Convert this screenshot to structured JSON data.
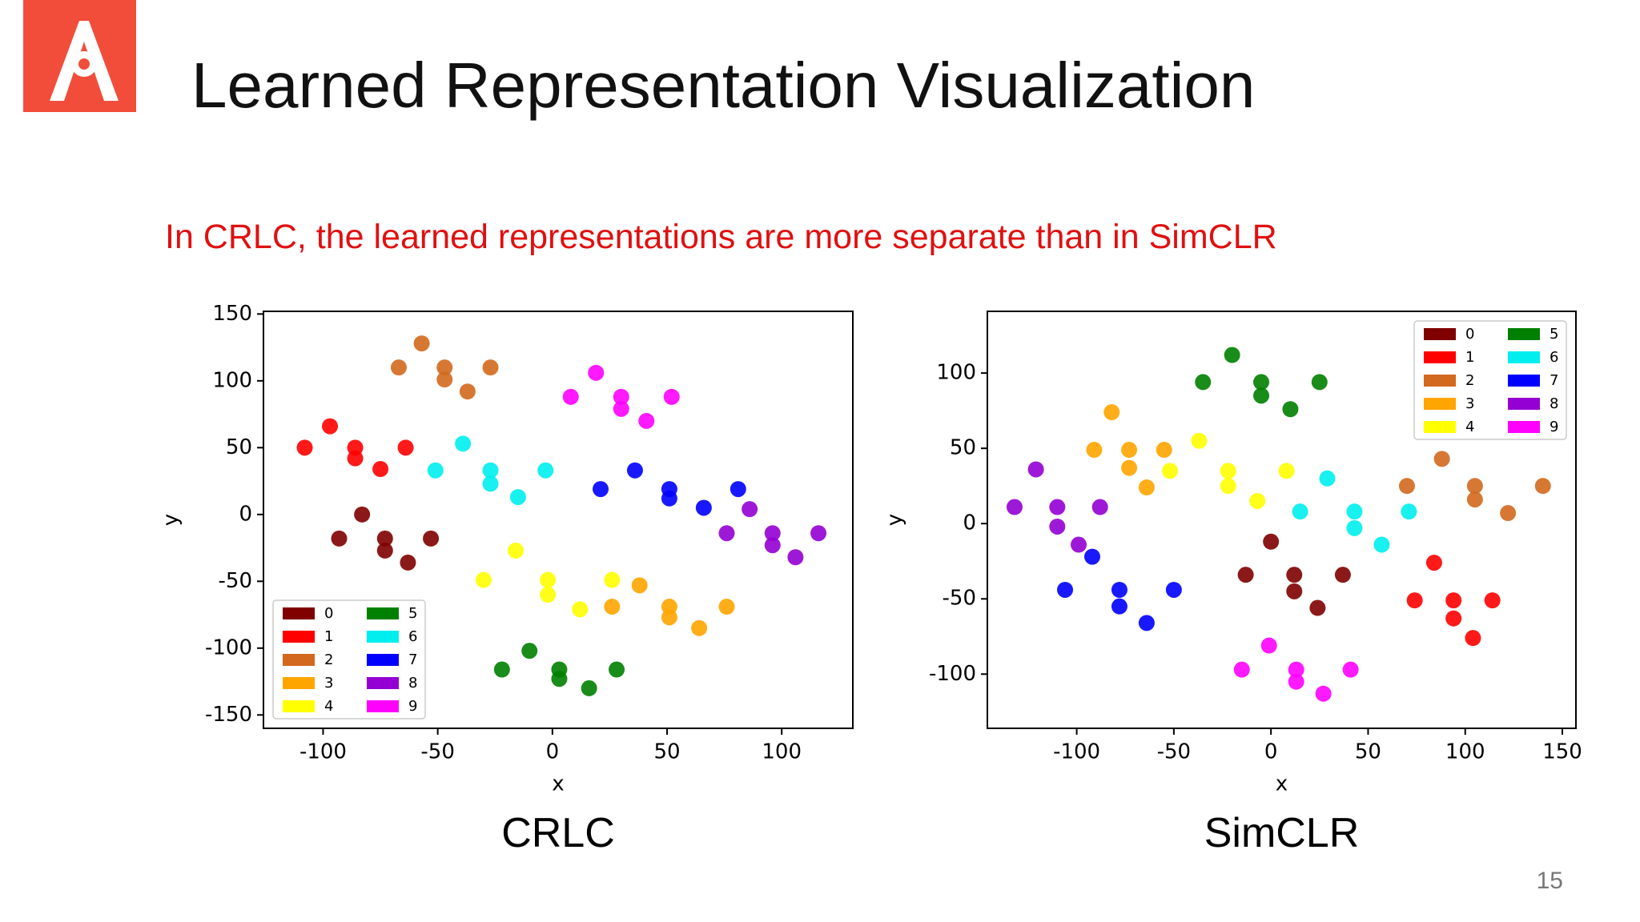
{
  "title": "Learned Representation Visualization",
  "subtitle": "In CRLC, the learned representations are more separate than in SimCLR",
  "page_number": "15",
  "chart_data": [
    {
      "type": "scatter",
      "caption": "CRLC",
      "x_label": "x",
      "y_label": "y",
      "xlim": [
        -126,
        131
      ],
      "ylim": [
        -160,
        152
      ],
      "xticks": [
        -100,
        -50,
        0,
        50,
        100
      ],
      "yticks": [
        -150,
        -100,
        -50,
        0,
        50,
        100,
        150
      ],
      "legend": "lower left",
      "series": [
        {
          "name": "0",
          "color": "#800000",
          "x": [
            -73,
            -93,
            -53,
            -83,
            -63,
            -73
          ],
          "values": [
            -18,
            -18,
            -18,
            0,
            -36,
            -27
          ]
        },
        {
          "name": "1",
          "color": "#ff0000",
          "x": [
            -86,
            -108,
            -64,
            -97,
            -75,
            -86
          ],
          "values": [
            50,
            50,
            50,
            66,
            34,
            42
          ]
        },
        {
          "name": "2",
          "color": "#d2691e",
          "x": [
            -47,
            -67,
            -27,
            -57,
            -37,
            -47
          ],
          "values": [
            110,
            110,
            110,
            128,
            92,
            101
          ]
        },
        {
          "name": "3",
          "color": "#ffa500",
          "x": [
            51,
            26,
            76,
            38,
            64,
            51
          ],
          "values": [
            -69,
            -69,
            -69,
            -53,
            -85,
            -77
          ]
        },
        {
          "name": "4",
          "color": "#ffff00",
          "x": [
            -2,
            -30,
            26,
            -16,
            12,
            -2
          ],
          "values": [
            -49,
            -49,
            -49,
            -27,
            -71,
            -60
          ]
        },
        {
          "name": "5",
          "color": "#008000",
          "x": [
            3,
            -22,
            28,
            -10,
            16,
            3
          ],
          "values": [
            -116,
            -116,
            -116,
            -102,
            -130,
            -123
          ]
        },
        {
          "name": "6",
          "color": "#00eeee",
          "x": [
            -27,
            -51,
            -3,
            -39,
            -15,
            -27
          ],
          "values": [
            33,
            33,
            33,
            53,
            13,
            23
          ]
        },
        {
          "name": "7",
          "color": "#0000ff",
          "x": [
            51,
            21,
            81,
            36,
            66,
            51
          ],
          "values": [
            19,
            19,
            19,
            33,
            5,
            12
          ]
        },
        {
          "name": "8",
          "color": "#9400d3",
          "x": [
            96,
            76,
            116,
            86,
            106,
            96
          ],
          "values": [
            -14,
            -14,
            -14,
            4,
            -32,
            -23
          ]
        },
        {
          "name": "9",
          "color": "#ff00ff",
          "x": [
            30,
            8,
            52,
            19,
            41,
            30
          ],
          "values": [
            88,
            88,
            88,
            106,
            70,
            79
          ]
        }
      ]
    },
    {
      "type": "scatter",
      "caption": "SimCLR",
      "x_label": "x",
      "y_label": "y",
      "xlim": [
        -146,
        157
      ],
      "ylim": [
        -136,
        141
      ],
      "xticks": [
        -100,
        -50,
        0,
        50,
        100,
        150
      ],
      "yticks": [
        -100,
        -50,
        0,
        50,
        100
      ],
      "legend": "upper right",
      "series": [
        {
          "name": "0",
          "color": "#800000",
          "x": [
            12,
            -13,
            37,
            0,
            24,
            12
          ],
          "values": [
            -34,
            -34,
            -34,
            -12,
            -56,
            -45
          ]
        },
        {
          "name": "1",
          "color": "#ff0000",
          "x": [
            94,
            74,
            114,
            84,
            104,
            94
          ],
          "values": [
            -51,
            -51,
            -51,
            -26,
            -76,
            -63
          ]
        },
        {
          "name": "2",
          "color": "#d2691e",
          "x": [
            105,
            70,
            140,
            88,
            122,
            105
          ],
          "values": [
            25,
            25,
            25,
            43,
            7,
            16
          ]
        },
        {
          "name": "3",
          "color": "#ffa500",
          "x": [
            -73,
            -91,
            -55,
            -82,
            -64,
            -73
          ],
          "values": [
            49,
            49,
            49,
            74,
            24,
            37
          ]
        },
        {
          "name": "4",
          "color": "#ffff00",
          "x": [
            -22,
            -52,
            8,
            -37,
            -7,
            -22
          ],
          "values": [
            35,
            35,
            35,
            55,
            15,
            25
          ]
        },
        {
          "name": "5",
          "color": "#008000",
          "x": [
            -5,
            -35,
            25,
            -20,
            10,
            -5
          ],
          "values": [
            94,
            94,
            94,
            112,
            76,
            85
          ]
        },
        {
          "name": "6",
          "color": "#00eeee",
          "x": [
            43,
            15,
            71,
            29,
            57,
            43
          ],
          "values": [
            8,
            8,
            8,
            30,
            -14,
            -3
          ]
        },
        {
          "name": "7",
          "color": "#0000ff",
          "x": [
            -78,
            -106,
            -50,
            -92,
            -64,
            -78
          ],
          "values": [
            -44,
            -44,
            -44,
            -22,
            -66,
            -55
          ]
        },
        {
          "name": "8",
          "color": "#9400d3",
          "x": [
            -110,
            -132,
            -88,
            -121,
            -99,
            -110
          ],
          "values": [
            11,
            11,
            11,
            36,
            -14,
            -2
          ]
        },
        {
          "name": "9",
          "color": "#ff00ff",
          "x": [
            13,
            -15,
            41,
            -1,
            27,
            13
          ],
          "values": [
            -97,
            -97,
            -97,
            -81,
            -113,
            -105
          ]
        }
      ]
    }
  ]
}
